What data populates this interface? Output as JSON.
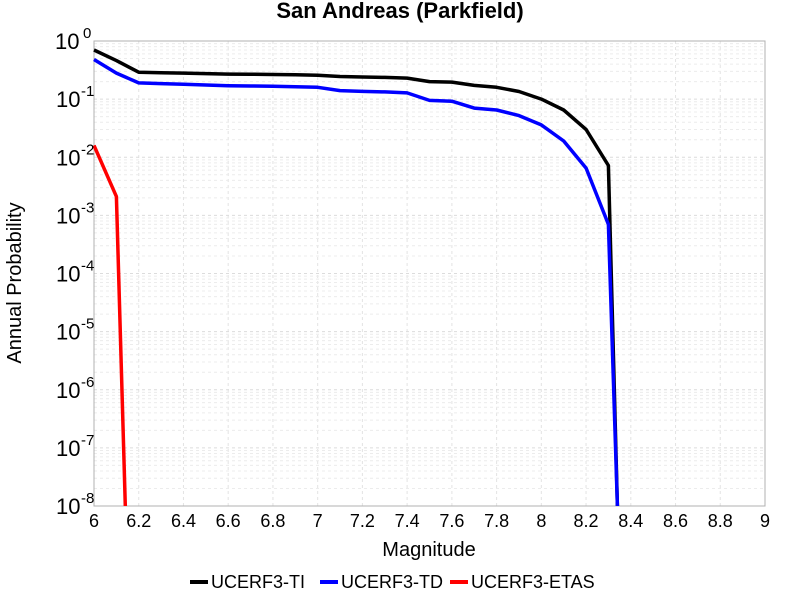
{
  "chart_data": {
    "type": "line",
    "title": "San Andreas (Parkfield)",
    "xlabel": "Magnitude",
    "ylabel": "Annual Probability",
    "xlim": [
      6,
      9
    ],
    "ylim": [
      1e-08,
      1
    ],
    "yscale": "log",
    "grid": true,
    "legend_position": "bottom",
    "xticks": [
      "6",
      "6.2",
      "6.4",
      "6.6",
      "6.8",
      "7",
      "7.2",
      "7.4",
      "7.6",
      "7.8",
      "8",
      "8.2",
      "8.4",
      "8.6",
      "8.8",
      "9"
    ],
    "yticks": [
      {
        "base": "10",
        "exp": "0"
      },
      {
        "base": "10",
        "exp": "-1"
      },
      {
        "base": "10",
        "exp": "-2"
      },
      {
        "base": "10",
        "exp": "-3"
      },
      {
        "base": "10",
        "exp": "-4"
      },
      {
        "base": "10",
        "exp": "-5"
      },
      {
        "base": "10",
        "exp": "-6"
      },
      {
        "base": "10",
        "exp": "-7"
      },
      {
        "base": "10",
        "exp": "-8"
      }
    ],
    "series": [
      {
        "name": "UCERF3-TI",
        "color": "#000000",
        "x": [
          6.0,
          6.1,
          6.2,
          6.3,
          6.4,
          6.5,
          6.6,
          6.7,
          6.8,
          6.9,
          7.0,
          7.1,
          7.2,
          7.3,
          7.4,
          7.5,
          7.6,
          7.7,
          7.8,
          7.9,
          8.0,
          8.1,
          8.2,
          8.3,
          8.34
        ],
        "y": [
          0.7,
          0.46,
          0.29,
          0.285,
          0.28,
          0.275,
          0.27,
          0.268,
          0.265,
          0.262,
          0.258,
          0.245,
          0.24,
          0.236,
          0.23,
          0.2,
          0.196,
          0.172,
          0.16,
          0.135,
          0.1,
          0.065,
          0.03,
          0.0072,
          1e-08
        ]
      },
      {
        "name": "UCERF3-TD",
        "color": "#0000ff",
        "x": [
          6.0,
          6.1,
          6.2,
          6.3,
          6.4,
          6.5,
          6.6,
          6.7,
          6.8,
          6.9,
          7.0,
          7.1,
          7.2,
          7.3,
          7.4,
          7.5,
          7.6,
          7.7,
          7.8,
          7.9,
          8.0,
          8.1,
          8.2,
          8.3,
          8.34
        ],
        "y": [
          0.48,
          0.28,
          0.19,
          0.185,
          0.18,
          0.175,
          0.17,
          0.168,
          0.166,
          0.163,
          0.16,
          0.14,
          0.136,
          0.133,
          0.128,
          0.095,
          0.092,
          0.07,
          0.065,
          0.052,
          0.036,
          0.019,
          0.0065,
          0.0007,
          1e-08
        ]
      },
      {
        "name": "UCERF3-ETAS",
        "color": "#ff0000",
        "x": [
          6.0,
          6.1,
          6.14
        ],
        "y": [
          0.016,
          0.0021,
          1e-08
        ]
      }
    ]
  }
}
